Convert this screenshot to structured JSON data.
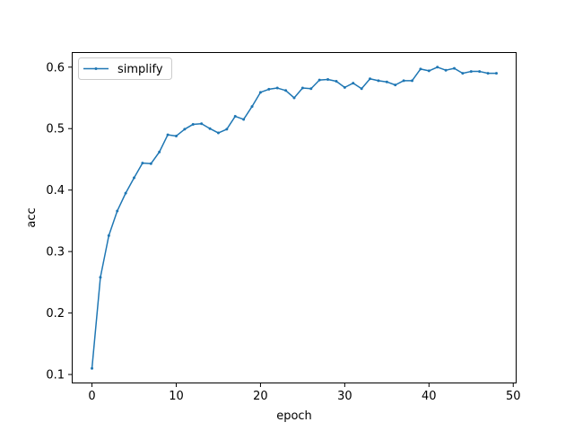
{
  "chart_data": {
    "type": "line",
    "title": "",
    "xlabel": "epoch",
    "ylabel": "acc",
    "xlim": [
      -2.4,
      50.4
    ],
    "ylim": [
      0.0855,
      0.6245
    ],
    "xticks": [
      0,
      10,
      20,
      30,
      40,
      50
    ],
    "xtick_labels": [
      "0",
      "10",
      "20",
      "30",
      "40",
      "50"
    ],
    "yticks": [
      0.1,
      0.2,
      0.3,
      0.4,
      0.5,
      0.6
    ],
    "ytick_labels": [
      "0.1",
      "0.2",
      "0.3",
      "0.4",
      "0.5",
      "0.6"
    ],
    "grid": false,
    "legend_position": "upper-left",
    "series": [
      {
        "name": "simplify",
        "color": "#1f77b4",
        "marker": "point",
        "x": [
          0,
          1,
          2,
          3,
          4,
          5,
          6,
          7,
          8,
          9,
          10,
          11,
          12,
          13,
          14,
          15,
          16,
          17,
          18,
          19,
          20,
          21,
          22,
          23,
          24,
          25,
          26,
          27,
          28,
          29,
          30,
          31,
          32,
          33,
          34,
          35,
          36,
          37,
          38,
          39,
          40,
          41,
          42,
          43,
          44,
          45,
          46,
          47,
          48
        ],
        "values": [
          0.11,
          0.258,
          0.326,
          0.366,
          0.395,
          0.42,
          0.444,
          0.443,
          0.462,
          0.49,
          0.488,
          0.499,
          0.507,
          0.508,
          0.5,
          0.493,
          0.499,
          0.52,
          0.515,
          0.536,
          0.559,
          0.564,
          0.566,
          0.562,
          0.55,
          0.566,
          0.565,
          0.579,
          0.58,
          0.577,
          0.567,
          0.574,
          0.565,
          0.581,
          0.578,
          0.576,
          0.571,
          0.578,
          0.578,
          0.597,
          0.594,
          0.6,
          0.595,
          0.598,
          0.59,
          0.593,
          0.593,
          0.59,
          0.59
        ]
      }
    ]
  }
}
